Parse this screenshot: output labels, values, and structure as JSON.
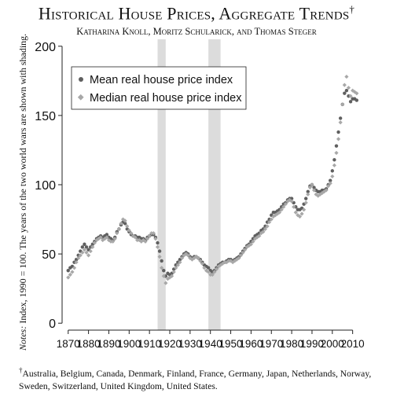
{
  "title": "Historical House Prices, Aggregate Trends",
  "title_mark": "†",
  "authors": "Katharina Knoll, Moritz Schularick, and Thomas Steger",
  "side_note_label": "Notes:",
  "side_note_text": "Index, 1990 = 100. The years of the two world wars are shown with shading.",
  "footnote_mark": "†",
  "footnote_text": "Australia, Belgium, Canada, Denmark, Finland, France, Germany, Japan, Netherlands, Norway, Sweden, Switzerland, United Kingdom, United States.",
  "colors": {
    "mean": "#5f5f5f",
    "median": "#a8a8a8",
    "shade": "#dcdcdc",
    "axis": "#222222"
  },
  "chart_data": {
    "type": "scatter",
    "title": "Historical House Prices, Aggregate Trends",
    "xlabel": "",
    "ylabel": "",
    "xlim": [
      1867,
      2014
    ],
    "ylim": [
      -5,
      205
    ],
    "x_ticks": [
      1870,
      1880,
      1890,
      1900,
      1910,
      1920,
      1930,
      1940,
      1950,
      1960,
      1970,
      1980,
      1990,
      2000,
      2010
    ],
    "y_ticks": [
      0,
      50,
      100,
      150,
      200
    ],
    "grid": false,
    "legend_position": "top-left",
    "shaded_periods": [
      [
        1914,
        1918
      ],
      [
        1939,
        1945
      ]
    ],
    "x": [
      1870,
      1871,
      1872,
      1873,
      1874,
      1875,
      1876,
      1877,
      1878,
      1879,
      1880,
      1881,
      1882,
      1883,
      1884,
      1885,
      1886,
      1887,
      1888,
      1889,
      1890,
      1891,
      1892,
      1893,
      1894,
      1895,
      1896,
      1897,
      1898,
      1899,
      1900,
      1901,
      1902,
      1903,
      1904,
      1905,
      1906,
      1907,
      1908,
      1909,
      1910,
      1911,
      1912,
      1913,
      1914,
      1915,
      1916,
      1917,
      1918,
      1919,
      1920,
      1921,
      1922,
      1923,
      1924,
      1925,
      1926,
      1927,
      1928,
      1929,
      1930,
      1931,
      1932,
      1933,
      1934,
      1935,
      1936,
      1937,
      1938,
      1939,
      1940,
      1941,
      1942,
      1943,
      1944,
      1945,
      1946,
      1947,
      1948,
      1949,
      1950,
      1951,
      1952,
      1953,
      1954,
      1955,
      1956,
      1957,
      1958,
      1959,
      1960,
      1961,
      1962,
      1963,
      1964,
      1965,
      1966,
      1967,
      1968,
      1969,
      1970,
      1971,
      1972,
      1973,
      1974,
      1975,
      1976,
      1977,
      1978,
      1979,
      1980,
      1981,
      1982,
      1983,
      1984,
      1985,
      1986,
      1987,
      1988,
      1989,
      1990,
      1991,
      1992,
      1993,
      1994,
      1995,
      1996,
      1997,
      1998,
      1999,
      2000,
      2001,
      2002,
      2003,
      2004,
      2005,
      2006,
      2007,
      2008,
      2009,
      2010,
      2011,
      2012
    ],
    "series": [
      {
        "name": "Mean real house price index",
        "values": [
          38,
          40,
          41,
          44,
          46,
          49,
          52,
          55,
          57,
          55,
          53,
          55,
          57,
          59,
          61,
          62,
          63,
          62,
          63,
          64,
          62,
          61,
          60,
          62,
          66,
          68,
          71,
          73,
          72,
          68,
          66,
          64,
          63,
          63,
          62,
          62,
          61,
          61,
          60,
          62,
          63,
          64,
          64,
          62,
          58,
          52,
          45,
          38,
          34,
          36,
          35,
          36,
          39,
          42,
          44,
          46,
          48,
          50,
          51,
          50,
          48,
          47,
          48,
          48,
          47,
          46,
          44,
          42,
          41,
          40,
          38,
          37,
          38,
          40,
          42,
          43,
          44,
          44,
          45,
          46,
          46,
          45,
          46,
          47,
          48,
          50,
          52,
          54,
          56,
          57,
          59,
          61,
          63,
          64,
          65,
          67,
          68,
          70,
          73,
          75,
          78,
          80,
          80,
          81,
          82,
          84,
          86,
          87,
          89,
          90,
          90,
          87,
          84,
          82,
          82,
          83,
          86,
          90,
          95,
          99,
          100,
          98,
          96,
          95,
          95,
          96,
          96,
          97,
          100,
          103,
          110,
          118,
          128,
          138,
          148,
          158,
          166,
          168,
          164,
          160,
          162,
          162,
          161
        ]
      },
      {
        "name": "Median real house price index",
        "values": [
          33,
          35,
          37,
          40,
          44,
          47,
          49,
          51,
          53,
          51,
          49,
          52,
          55,
          58,
          60,
          61,
          62,
          60,
          61,
          62,
          60,
          59,
          59,
          61,
          65,
          68,
          72,
          75,
          74,
          70,
          67,
          65,
          63,
          62,
          60,
          60,
          59,
          60,
          59,
          61,
          63,
          65,
          65,
          61,
          55,
          48,
          40,
          34,
          29,
          32,
          33,
          34,
          37,
          40,
          42,
          44,
          47,
          49,
          50,
          49,
          47,
          46,
          47,
          48,
          47,
          45,
          43,
          40,
          38,
          37,
          35,
          35,
          37,
          39,
          41,
          42,
          43,
          44,
          44,
          45,
          45,
          44,
          45,
          46,
          47,
          49,
          51,
          53,
          55,
          56,
          57,
          59,
          61,
          62,
          63,
          65,
          66,
          68,
          70,
          73,
          75,
          77,
          78,
          79,
          80,
          82,
          84,
          86,
          88,
          89,
          88,
          84,
          80,
          78,
          77,
          79,
          82,
          87,
          93,
          98,
          100,
          96,
          93,
          92,
          93,
          94,
          95,
          96,
          99,
          101,
          106,
          114,
          123,
          133,
          145,
          158,
          172,
          178,
          170,
          164,
          168,
          167,
          166
        ]
      }
    ]
  }
}
